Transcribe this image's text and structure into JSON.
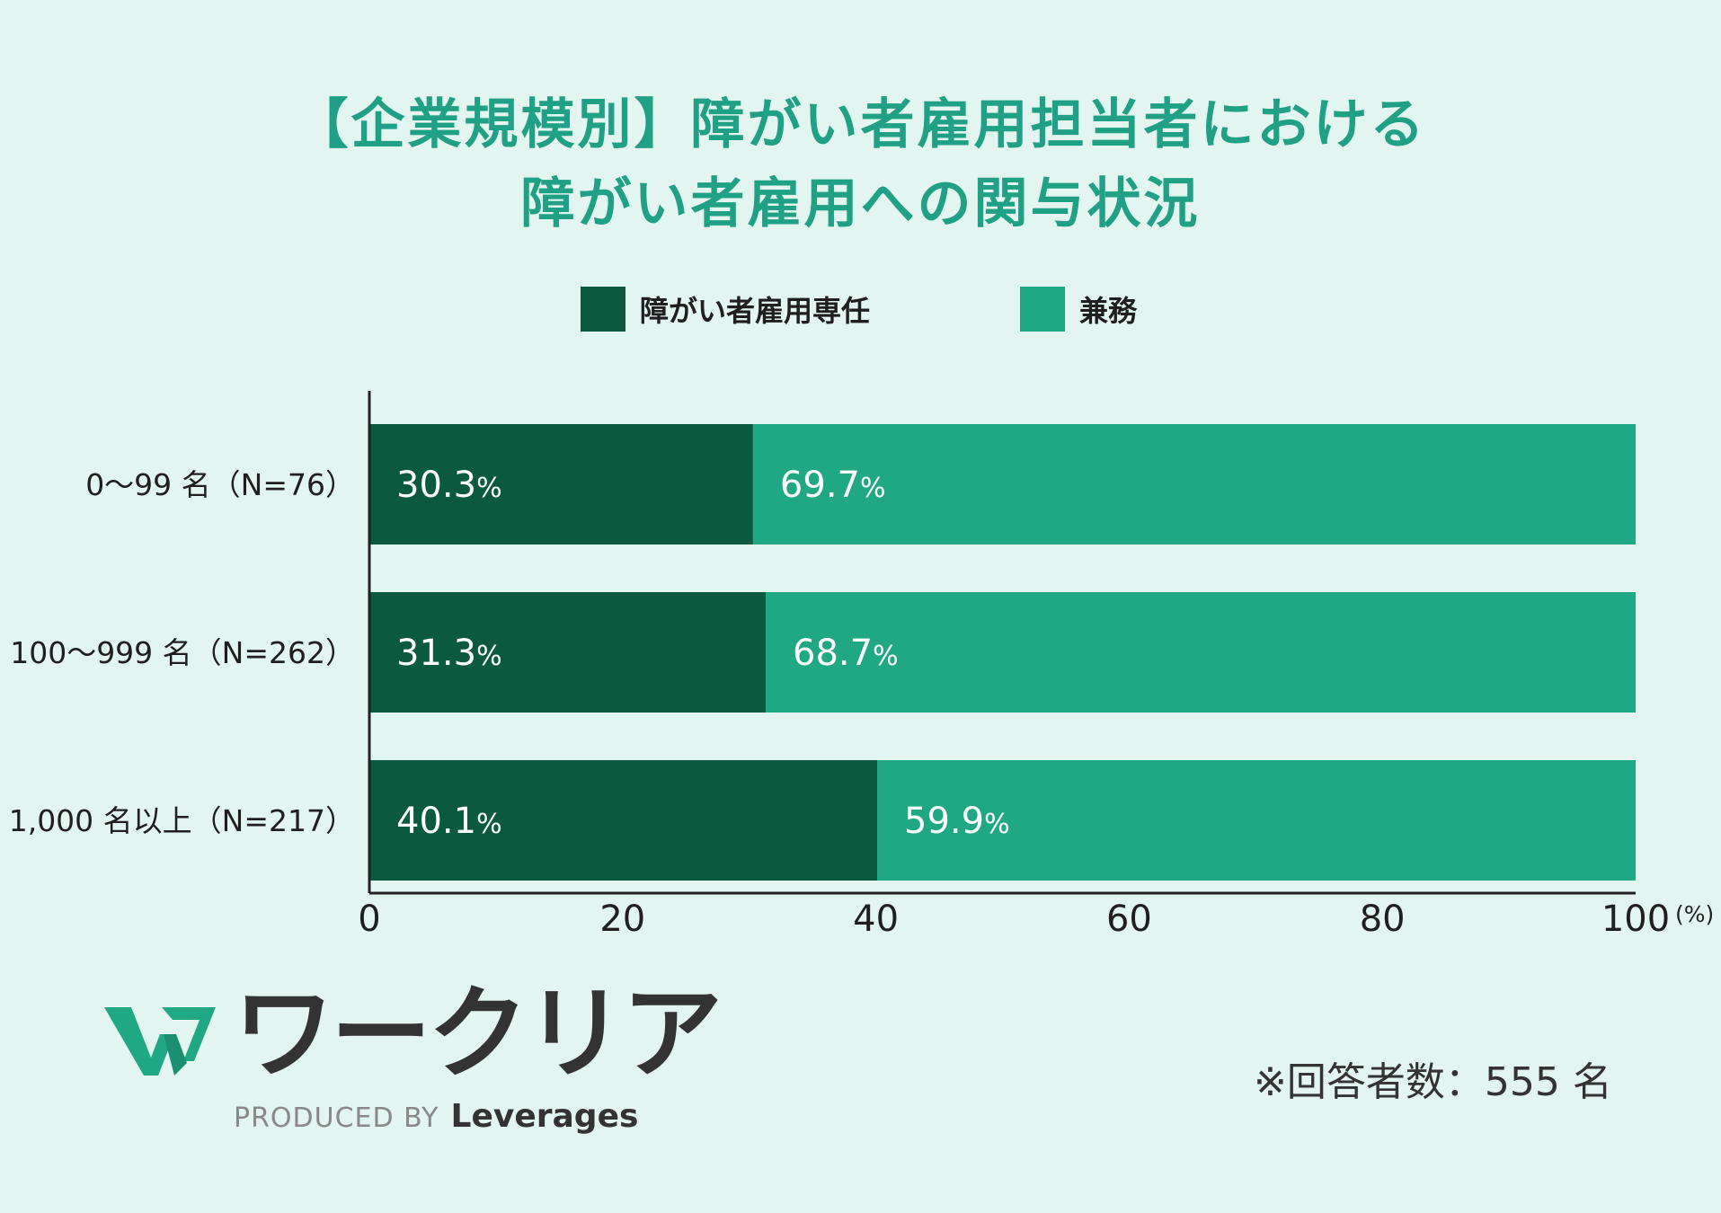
{
  "title": {
    "line1": "【企業規模別】障がい者雇用担当者における",
    "line2": "障がい者雇用への関与状況"
  },
  "colors": {
    "background": "#e3f5f0",
    "dark_green": "#0b5a40",
    "teal": "#20a885",
    "title": "#20a085",
    "axis": "#222222"
  },
  "chart_data": {
    "type": "bar",
    "orientation": "horizontal",
    "stacked": true,
    "categories": [
      "0～99 名（N=76）",
      "100～999 名（N=262）",
      "1,000 名以上（N=217）"
    ],
    "series": [
      {
        "name": "障がい者雇用専任",
        "values": [
          30.3,
          31.3,
          40.1
        ],
        "color": "#0b5a40"
      },
      {
        "name": "兼務",
        "values": [
          69.7,
          68.7,
          59.9
        ],
        "color": "#20a885"
      }
    ],
    "xlim": [
      0,
      100
    ],
    "xticks": [
      0,
      20,
      40,
      60,
      80,
      100
    ],
    "xunit": "(%)",
    "value_suffix": "%",
    "legend": "top-center",
    "grid": false
  },
  "logo": {
    "name": "ワークリア",
    "produced_by": "PRODUCED BY",
    "company": "Leverages"
  },
  "footnote": "※回答者数：555 名"
}
